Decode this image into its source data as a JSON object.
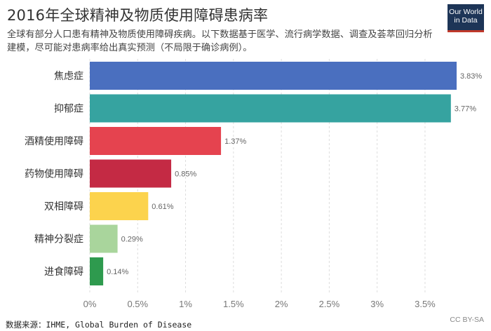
{
  "header": {
    "title": "2016年全球精神及物质使用障碍患病率",
    "subtitle": "全球有部分人口患有精神及物质使用障碍疾病。以下数据基于医学、流行病学数据、调查及荟萃回归分析建模，尽可能对患病率给出真实预测（不局限于确诊病例）。"
  },
  "logo": {
    "line1": "Our World",
    "line2": "in Data"
  },
  "footer": {
    "source": "数据来源：IHME, Global Burden of Disease",
    "license": "CC BY-SA"
  },
  "chart_data": {
    "type": "bar",
    "orientation": "horizontal",
    "categories": [
      "焦虑症",
      "抑郁症",
      "酒精使用障碍",
      "药物使用障碍",
      "双相障碍",
      "精神分裂症",
      "进食障碍"
    ],
    "values": [
      3.83,
      3.77,
      1.37,
      0.85,
      0.61,
      0.29,
      0.14
    ],
    "value_labels": [
      "3.83%",
      "3.77%",
      "1.37%",
      "0.85%",
      "0.61%",
      "0.29%",
      "0.14%"
    ],
    "colors": [
      "#4a6fbf",
      "#36a3a0",
      "#e5434f",
      "#c42a44",
      "#fcd34d",
      "#a9d59c",
      "#2e9a4e"
    ],
    "x_ticks": [
      0,
      0.5,
      1,
      1.5,
      2,
      2.5,
      3,
      3.5
    ],
    "x_tick_labels": [
      "0%",
      "0.5%",
      "1%",
      "1.5%",
      "2%",
      "2.5%",
      "3%",
      "3.5%"
    ],
    "xlim": [
      0,
      3.83
    ],
    "grid": true
  }
}
